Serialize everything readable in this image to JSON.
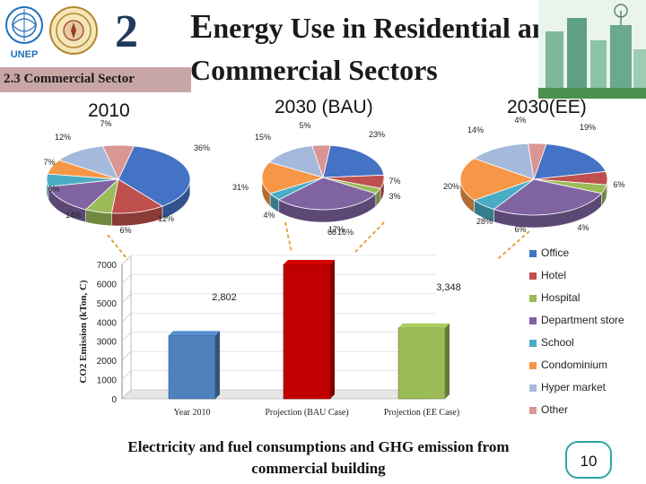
{
  "header": {
    "chapter_number": "2",
    "title_line1_first": "E",
    "title_line1_rest": "nergy Use in Residential and",
    "title_line2": "Commercial Sectors",
    "section_label": "2.3 Commercial Sector",
    "logo_text": "UNEP"
  },
  "pies": {
    "year_2010": "2010",
    "year_bau": "2030 (BAU)",
    "year_ee": "2030(EE)"
  },
  "legend": {
    "items": [
      {
        "label": "Office",
        "color": "#4472c4"
      },
      {
        "label": "Hotel",
        "color": "#c0504d"
      },
      {
        "label": "Hospital",
        "color": "#9bbb59"
      },
      {
        "label": "Department store",
        "color": "#8064a2"
      },
      {
        "label": "School",
        "color": "#4bacc6"
      },
      {
        "label": "Condominium",
        "color": "#f79646"
      },
      {
        "label": "Hyper market",
        "color": "#a5b9dc"
      },
      {
        "label": "Other",
        "color": "#d99694"
      }
    ]
  },
  "caption": {
    "line1": "Electricity and fuel consumptions and GHG emission from",
    "line2": "commercial building"
  },
  "page_number": "10",
  "chart_data": [
    {
      "type": "pie",
      "title": "2010",
      "categories": [
        "Office",
        "Hotel",
        "Hospital",
        "Department store",
        "School",
        "Condominium",
        "Hyper market",
        "Other"
      ],
      "values": [
        36,
        12,
        6,
        14,
        6,
        7,
        12,
        7
      ],
      "labels": [
        "36%",
        "12%",
        "6%",
        "14%",
        "6%",
        "7%",
        "12%",
        "7%"
      ]
    },
    {
      "type": "pie",
      "title": "2030 (BAU)",
      "categories": [
        "Office",
        "Hotel",
        "Hospital",
        "Department store",
        "School",
        "Condominium",
        "Hyper market",
        "Other"
      ],
      "values": [
        23,
        7,
        3,
        31,
        4,
        17,
        15,
        5
      ],
      "labels": [
        "23%",
        "7%",
        "3%",
        "31%",
        "4%",
        "17%",
        "15%",
        "5%"
      ],
      "extra_labels": [
        "68",
        "16%"
      ]
    },
    {
      "type": "pie",
      "title": "2030(EE)",
      "categories": [
        "Office",
        "Hotel",
        "Hospital",
        "Department store",
        "School",
        "Condominium",
        "Hyper market",
        "Other"
      ],
      "values": [
        19,
        6,
        4,
        28,
        6,
        20,
        14,
        4
      ],
      "labels": [
        "19%",
        "6%",
        "4%",
        "28%",
        "6%",
        "20%",
        "14%",
        "4%"
      ]
    },
    {
      "type": "bar",
      "categories": [
        "Year 2010",
        "Projection (BAU Case)",
        "Projection (EE Case)"
      ],
      "values": [
        3300,
        7000,
        3700
      ],
      "colors": [
        "#4f81bd",
        "#c00000",
        "#9bbb59"
      ],
      "ylabel": "CO2 Emission (kTon, C)",
      "ylim": [
        0,
        7000
      ],
      "yticks": [
        0,
        1000,
        2000,
        3000,
        4000,
        5000,
        6000,
        7000
      ],
      "annotations": [
        "2,802",
        "3,348"
      ]
    }
  ]
}
